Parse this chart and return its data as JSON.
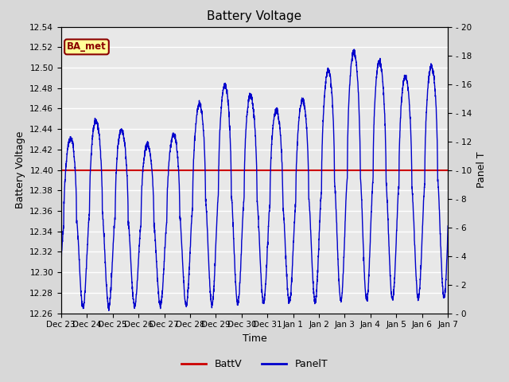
{
  "title": "Battery Voltage",
  "xlabel": "Time",
  "ylabel_left": "Battery Voltage",
  "ylabel_right": "Panel T",
  "batt_v": 12.4,
  "ylim_left": [
    12.26,
    12.54
  ],
  "ylim_right": [
    0,
    20
  ],
  "yticks_left": [
    12.26,
    12.28,
    12.3,
    12.32,
    12.34,
    12.36,
    12.38,
    12.4,
    12.42,
    12.44,
    12.46,
    12.48,
    12.5,
    12.52,
    12.54
  ],
  "yticks_right": [
    0,
    2,
    4,
    6,
    8,
    10,
    12,
    14,
    16,
    18,
    20
  ],
  "xtick_labels": [
    "Dec 23",
    "Dec 24",
    "Dec 25",
    "Dec 26",
    "Dec 27",
    "Dec 28",
    "Dec 29",
    "Dec 30",
    "Dec 31",
    "Jan 1",
    "Jan 2",
    "Jan 3",
    "Jan 4",
    "Jan 5",
    "Jan 6",
    "Jan 7"
  ],
  "bg_color": "#e8e8e8",
  "line_color_panel": "#0000cc",
  "line_color_batt": "#cc0000",
  "annotation_text": "BA_met",
  "annotation_bg": "#ffff99",
  "annotation_border": "#8b0000",
  "legend_labels": [
    "BattV",
    "PanelT"
  ],
  "legend_colors": [
    "#cc0000",
    "#0000cc"
  ],
  "fig_bg": "#d8d8d8"
}
